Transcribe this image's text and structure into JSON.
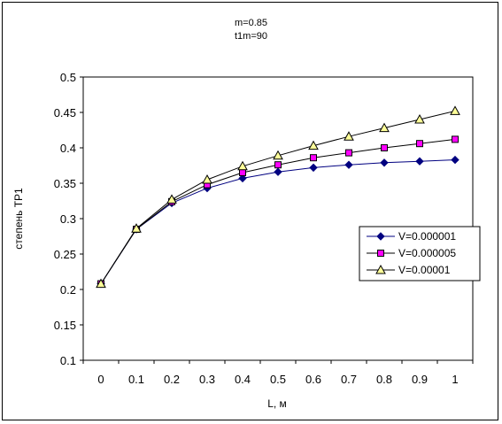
{
  "chart_data": {
    "type": "line",
    "title_lines": [
      "m=0.85",
      "t1m=90"
    ],
    "xlabel": "L, м",
    "ylabel": "степень ТР1",
    "x": [
      0,
      0.1,
      0.2,
      0.3,
      0.4,
      0.5,
      0.6,
      0.7,
      0.8,
      0.9,
      1
    ],
    "x_tick_labels": [
      "0",
      "0.1",
      "0.2",
      "0.3",
      "0.4",
      "0.5",
      "0.6",
      "0.7",
      "0.8",
      "0.9",
      "1"
    ],
    "y_ticks": [
      0.1,
      0.15,
      0.2,
      0.25,
      0.3,
      0.35,
      0.4,
      0.45,
      0.5
    ],
    "y_tick_labels": [
      "0.1",
      "0.15",
      "0.2",
      "0.25",
      "0.3",
      "0.35",
      "0.4",
      "0.45",
      "0.5"
    ],
    "ylim": [
      0.1,
      0.5
    ],
    "grid": false,
    "legend_position": "right",
    "series": [
      {
        "name": "V=0.000001",
        "marker": "diamond",
        "color": "#000080",
        "fill": "#000080",
        "values": [
          0.208,
          0.285,
          0.322,
          0.343,
          0.357,
          0.366,
          0.372,
          0.376,
          0.379,
          0.381,
          0.383
        ]
      },
      {
        "name": "V=0.000005",
        "marker": "square",
        "color": "#000000",
        "fill": "#ff00ff",
        "values": [
          0.208,
          0.285,
          0.324,
          0.348,
          0.365,
          0.376,
          0.386,
          0.393,
          0.4,
          0.406,
          0.412
        ]
      },
      {
        "name": "V=0.00001",
        "marker": "triangle",
        "color": "#000000",
        "fill": "#ffff99",
        "values": [
          0.208,
          0.286,
          0.327,
          0.355,
          0.374,
          0.389,
          0.403,
          0.416,
          0.428,
          0.44,
          0.452
        ]
      }
    ]
  }
}
